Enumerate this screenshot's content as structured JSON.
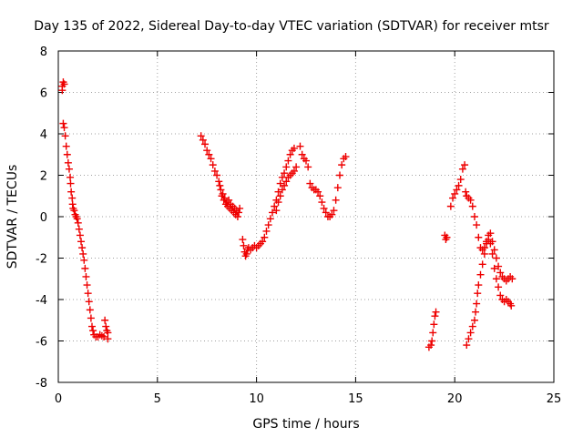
{
  "chart_data": {
    "type": "scatter",
    "title": "Day 135 of 2022, Sidereal Day-to-day VTEC variation (SDTVAR) for receiver mtsr",
    "xlabel": "GPS time / hours",
    "ylabel": "SDTVAR / TECUs",
    "xlim": [
      0,
      25
    ],
    "ylim": [
      -8,
      8
    ],
    "xticks": [
      "0",
      "5",
      "10",
      "15",
      "20",
      "25"
    ],
    "yticks": [
      "-8",
      "-6",
      "-4",
      "-2",
      "0",
      "2",
      "4",
      "6",
      "8"
    ],
    "grid": true,
    "marker": "plus",
    "color": "#ee0000",
    "series": [
      {
        "name": "SDTVAR",
        "points": [
          [
            0.2,
            6.3
          ],
          [
            0.25,
            6.5
          ],
          [
            0.3,
            6.4
          ],
          [
            0.2,
            6.1
          ],
          [
            0.25,
            4.5
          ],
          [
            0.3,
            4.3
          ],
          [
            0.35,
            3.9
          ],
          [
            0.4,
            3.4
          ],
          [
            0.45,
            3.0
          ],
          [
            0.5,
            2.6
          ],
          [
            0.55,
            2.3
          ],
          [
            0.6,
            1.9
          ],
          [
            0.62,
            1.6
          ],
          [
            0.65,
            1.2
          ],
          [
            0.7,
            0.9
          ],
          [
            0.72,
            0.6
          ],
          [
            0.75,
            0.4
          ],
          [
            0.8,
            0.3
          ],
          [
            0.85,
            0.1
          ],
          [
            0.9,
            0.0
          ],
          [
            0.95,
            -0.1
          ],
          [
            1.0,
            -0.3
          ],
          [
            1.05,
            -0.6
          ],
          [
            1.1,
            -0.9
          ],
          [
            1.15,
            -1.2
          ],
          [
            1.2,
            -1.5
          ],
          [
            1.25,
            -1.8
          ],
          [
            1.3,
            -2.1
          ],
          [
            1.35,
            -2.5
          ],
          [
            1.4,
            -2.9
          ],
          [
            1.45,
            -3.3
          ],
          [
            1.5,
            -3.7
          ],
          [
            1.55,
            -4.1
          ],
          [
            1.6,
            -4.5
          ],
          [
            1.65,
            -4.9
          ],
          [
            1.7,
            -5.3
          ],
          [
            1.75,
            -5.5
          ],
          [
            1.8,
            -5.7
          ],
          [
            1.9,
            -5.8
          ],
          [
            2.0,
            -5.8
          ],
          [
            2.1,
            -5.7
          ],
          [
            2.2,
            -5.75
          ],
          [
            2.3,
            -5.8
          ],
          [
            2.35,
            -5.0
          ],
          [
            2.4,
            -5.3
          ],
          [
            2.45,
            -5.5
          ],
          [
            2.5,
            -5.9
          ],
          [
            2.5,
            -5.6
          ],
          [
            7.2,
            3.9
          ],
          [
            7.3,
            3.7
          ],
          [
            7.4,
            3.5
          ],
          [
            7.5,
            3.2
          ],
          [
            7.6,
            3.0
          ],
          [
            7.7,
            2.8
          ],
          [
            7.8,
            2.5
          ],
          [
            7.9,
            2.2
          ],
          [
            8.0,
            2.0
          ],
          [
            8.1,
            1.7
          ],
          [
            8.15,
            1.5
          ],
          [
            8.2,
            1.3
          ],
          [
            8.25,
            1.0
          ],
          [
            8.3,
            1.1
          ],
          [
            8.35,
            0.8
          ],
          [
            8.4,
            0.9
          ],
          [
            8.45,
            0.6
          ],
          [
            8.5,
            0.7
          ],
          [
            8.55,
            0.5
          ],
          [
            8.6,
            0.8
          ],
          [
            8.65,
            0.4
          ],
          [
            8.7,
            0.6
          ],
          [
            8.75,
            0.3
          ],
          [
            8.8,
            0.5
          ],
          [
            8.85,
            0.2
          ],
          [
            8.9,
            0.4
          ],
          [
            8.95,
            0.1
          ],
          [
            9.0,
            0.3
          ],
          [
            9.05,
            0.0
          ],
          [
            9.1,
            0.2
          ],
          [
            9.15,
            0.4
          ],
          [
            9.3,
            -1.1
          ],
          [
            9.35,
            -1.4
          ],
          [
            9.4,
            -1.7
          ],
          [
            9.45,
            -1.9
          ],
          [
            9.5,
            -1.8
          ],
          [
            9.55,
            -1.6
          ],
          [
            9.6,
            -1.5
          ],
          [
            9.7,
            -1.6
          ],
          [
            9.8,
            -1.5
          ],
          [
            9.9,
            -1.4
          ],
          [
            10.0,
            -1.5
          ],
          [
            10.1,
            -1.4
          ],
          [
            10.2,
            -1.3
          ],
          [
            10.3,
            -1.2
          ],
          [
            10.4,
            -1.0
          ],
          [
            10.5,
            -0.7
          ],
          [
            10.6,
            -0.4
          ],
          [
            10.7,
            -0.1
          ],
          [
            10.8,
            0.2
          ],
          [
            10.9,
            0.5
          ],
          [
            11.0,
            0.8
          ],
          [
            11.1,
            1.2
          ],
          [
            11.2,
            1.6
          ],
          [
            11.3,
            1.9
          ],
          [
            11.4,
            2.1
          ],
          [
            11.5,
            2.4
          ],
          [
            11.6,
            2.7
          ],
          [
            11.7,
            3.0
          ],
          [
            11.8,
            3.2
          ],
          [
            11.9,
            3.3
          ],
          [
            11.0,
            0.3
          ],
          [
            11.1,
            0.7
          ],
          [
            11.2,
            1.0
          ],
          [
            11.3,
            1.3
          ],
          [
            11.4,
            1.5
          ],
          [
            11.5,
            1.7
          ],
          [
            11.6,
            1.9
          ],
          [
            11.7,
            2.0
          ],
          [
            11.8,
            2.1
          ],
          [
            11.9,
            2.2
          ],
          [
            12.0,
            2.4
          ],
          [
            12.2,
            3.4
          ],
          [
            12.3,
            3.0
          ],
          [
            12.4,
            2.8
          ],
          [
            12.5,
            2.7
          ],
          [
            12.6,
            2.4
          ],
          [
            12.7,
            1.6
          ],
          [
            12.8,
            1.4
          ],
          [
            12.9,
            1.3
          ],
          [
            13.0,
            1.3
          ],
          [
            13.1,
            1.2
          ],
          [
            13.2,
            1.0
          ],
          [
            13.3,
            0.7
          ],
          [
            13.4,
            0.4
          ],
          [
            13.5,
            0.2
          ],
          [
            13.6,
            0.0
          ],
          [
            13.7,
            0.0
          ],
          [
            13.8,
            0.1
          ],
          [
            13.9,
            0.3
          ],
          [
            14.0,
            0.8
          ],
          [
            14.1,
            1.4
          ],
          [
            14.2,
            2.0
          ],
          [
            14.3,
            2.5
          ],
          [
            14.4,
            2.8
          ],
          [
            14.5,
            2.9
          ],
          [
            18.7,
            -6.3
          ],
          [
            18.8,
            -6.2
          ],
          [
            18.85,
            -6.0
          ],
          [
            18.9,
            -5.6
          ],
          [
            18.95,
            -5.2
          ],
          [
            19.0,
            -4.8
          ],
          [
            19.05,
            -4.6
          ],
          [
            19.5,
            -0.9
          ],
          [
            19.55,
            -1.1
          ],
          [
            19.6,
            -1.0
          ],
          [
            19.8,
            0.5
          ],
          [
            19.9,
            0.9
          ],
          [
            20.0,
            1.1
          ],
          [
            20.1,
            1.3
          ],
          [
            20.2,
            1.5
          ],
          [
            20.3,
            1.8
          ],
          [
            20.4,
            2.3
          ],
          [
            20.5,
            2.5
          ],
          [
            20.55,
            1.2
          ],
          [
            20.6,
            1.0
          ],
          [
            20.7,
            0.9
          ],
          [
            20.8,
            0.8
          ],
          [
            20.9,
            0.5
          ],
          [
            21.0,
            0.0
          ],
          [
            21.1,
            -0.4
          ],
          [
            21.2,
            -1.0
          ],
          [
            21.3,
            -1.5
          ],
          [
            21.4,
            -1.6
          ],
          [
            21.5,
            -1.5
          ],
          [
            21.6,
            -1.2
          ],
          [
            21.7,
            -1.1
          ],
          [
            21.8,
            -1.3
          ],
          [
            21.9,
            -1.8
          ],
          [
            22.0,
            -2.5
          ],
          [
            22.1,
            -3.0
          ],
          [
            22.2,
            -3.4
          ],
          [
            22.3,
            -3.8
          ],
          [
            22.4,
            -4.0
          ],
          [
            22.5,
            -4.1
          ],
          [
            22.6,
            -4.0
          ],
          [
            22.7,
            -4.1
          ],
          [
            22.8,
            -4.2
          ],
          [
            22.85,
            -4.3
          ],
          [
            20.6,
            -6.2
          ],
          [
            20.7,
            -5.9
          ],
          [
            20.8,
            -5.6
          ],
          [
            20.9,
            -5.3
          ],
          [
            21.0,
            -5.0
          ],
          [
            21.05,
            -4.6
          ],
          [
            21.1,
            -4.2
          ],
          [
            21.15,
            -3.7
          ],
          [
            21.2,
            -3.3
          ],
          [
            21.3,
            -2.8
          ],
          [
            21.4,
            -2.3
          ],
          [
            21.5,
            -1.8
          ],
          [
            21.6,
            -1.3
          ],
          [
            21.7,
            -0.9
          ],
          [
            21.8,
            -0.8
          ],
          [
            21.9,
            -1.2
          ],
          [
            22.0,
            -1.6
          ],
          [
            22.1,
            -2.0
          ],
          [
            22.2,
            -2.4
          ],
          [
            22.3,
            -2.7
          ],
          [
            22.4,
            -2.9
          ],
          [
            22.5,
            -3.0
          ],
          [
            22.6,
            -3.1
          ],
          [
            22.7,
            -3.0
          ],
          [
            22.8,
            -2.9
          ],
          [
            22.9,
            -3.0
          ]
        ]
      }
    ]
  }
}
